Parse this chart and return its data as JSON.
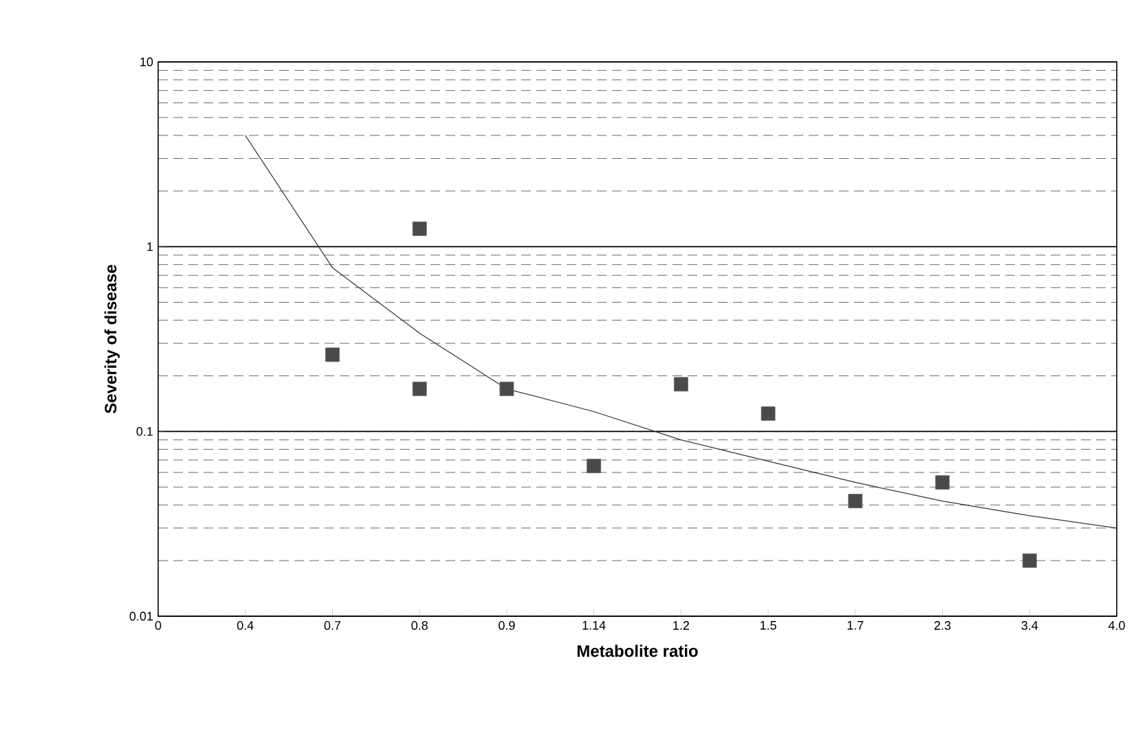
{
  "chart_data": {
    "type": "scatter",
    "xlabel": "Metabolite ratio",
    "ylabel": "Severity of disease",
    "categories": [
      "0",
      "0.4",
      "0.7",
      "0.8",
      "0.9",
      "1.14",
      "1.2",
      "1.5",
      "1.7",
      "2.3",
      "3.4",
      "4.0"
    ],
    "series": [
      {
        "color": "#4a4a4a",
        "marker": "square",
        "x": [
          "0.7",
          "0.8",
          "0.8",
          "0.9",
          "1.14",
          "1.2",
          "1.5",
          "1.7",
          "2.3",
          "3.4"
        ],
        "values": [
          0.26,
          1.25,
          0.17,
          0.17,
          0.065,
          0.18,
          0.125,
          0.042,
          0.053,
          0.02
        ]
      },
      {
        "type": "line",
        "color": "#333333",
        "marker": "none",
        "line_style": "solid",
        "values": [
          null,
          4.0,
          0.77,
          0.34,
          0.17,
          0.128,
          0.09,
          0.069,
          0.053,
          0.042,
          0.035,
          0.03
        ]
      }
    ],
    "log": "y",
    "ylim": [
      0.01,
      10
    ],
    "yticks": [
      0.01,
      0.1,
      1,
      10
    ],
    "grid": "y"
  }
}
